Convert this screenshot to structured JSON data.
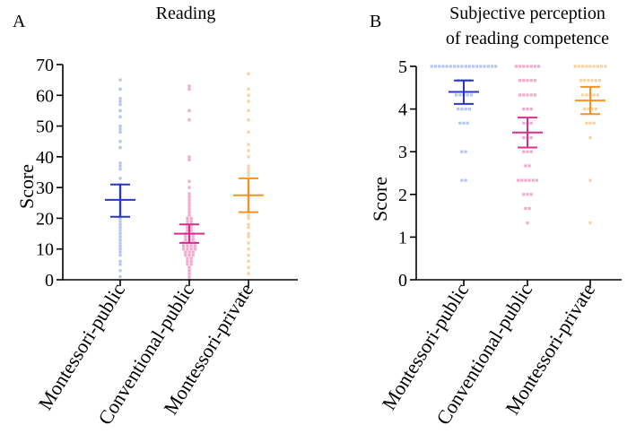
{
  "chart_data": [
    {
      "type": "scatter",
      "panel_letter": "A",
      "title": "Reading",
      "ylabel": "Score",
      "ylim": [
        0,
        70
      ],
      "yticks": [
        0,
        10,
        20,
        30,
        40,
        50,
        60,
        70
      ],
      "categories": [
        "Montessori-public",
        "Conventional-public",
        "Montessori-private"
      ],
      "series": [
        {
          "category": "Montessori-public",
          "color": "#2b35c9",
          "point_color": "#b5c6ee",
          "mean": 26,
          "err_low": 20.5,
          "err_high": 31,
          "values": [
            65,
            62,
            59,
            58,
            57,
            55,
            53,
            50,
            49,
            48,
            45,
            43,
            38,
            37,
            36,
            33,
            31,
            30,
            29,
            28,
            27,
            26,
            25,
            24,
            23,
            22,
            21,
            20,
            19,
            18,
            17,
            16,
            15,
            14,
            13,
            12,
            11,
            10,
            9,
            8,
            6,
            5,
            3,
            1
          ]
        },
        {
          "category": "Conventional-public",
          "color": "#d4318f",
          "point_color": "#f2a8cf",
          "mean": 15,
          "err_low": 12,
          "err_high": 18,
          "values": [
            63,
            62,
            55,
            52,
            40,
            39,
            32,
            30,
            28,
            27,
            26,
            25,
            24,
            23,
            22,
            21,
            20,
            20,
            19,
            19,
            18,
            18,
            17,
            17,
            16,
            16,
            15,
            15,
            15,
            14,
            14,
            14,
            13,
            13,
            13,
            12,
            12,
            12,
            12,
            11,
            11,
            11,
            11,
            10,
            10,
            10,
            10,
            9,
            9,
            9,
            8,
            8,
            8,
            7,
            7,
            6,
            6,
            5,
            5,
            4,
            3,
            2,
            1,
            0
          ]
        },
        {
          "category": "Montessori-private",
          "color": "#f29426",
          "point_color": "#f8d2a5",
          "mean": 27.5,
          "err_low": 22,
          "err_high": 33,
          "values": [
            67,
            62,
            60,
            58,
            55,
            52,
            48,
            44,
            42,
            40,
            37,
            36,
            35,
            34,
            32,
            31,
            30,
            29,
            28,
            27,
            26,
            25,
            24,
            23,
            22,
            21,
            20,
            18,
            17,
            15,
            14,
            12,
            10,
            8,
            6,
            4,
            2
          ]
        }
      ]
    },
    {
      "type": "scatter",
      "panel_letter": "B",
      "title": "Subjective perception of reading competence",
      "title_lines": [
        "Subjective perception",
        "of reading competence"
      ],
      "ylabel": "Score",
      "ylim": [
        0,
        5
      ],
      "yticks": [
        0,
        1,
        2,
        3,
        4,
        5
      ],
      "categories": [
        "Montessori-public",
        "Conventional-public",
        "Montessori-private"
      ],
      "series": [
        {
          "category": "Montessori-public",
          "color": "#2b35c9",
          "point_color": "#b5c6ee",
          "mean": 4.4,
          "err_low": 4.12,
          "err_high": 4.67,
          "values": [
            5,
            5,
            5,
            5,
            5,
            5,
            5,
            5,
            5,
            5,
            5,
            5,
            5,
            5,
            5,
            5,
            5,
            5,
            4.67,
            4.67,
            4.67,
            4.67,
            4.33,
            4.33,
            4.33,
            4.33,
            4.33,
            4,
            4,
            4,
            4,
            3.67,
            3.67,
            3.67,
            3,
            3,
            2.33,
            2.33
          ]
        },
        {
          "category": "Conventional-public",
          "color": "#d4318f",
          "point_color": "#f2a8cf",
          "mean": 3.45,
          "err_low": 3.1,
          "err_high": 3.8,
          "values": [
            5,
            5,
            5,
            5,
            5,
            5,
            5,
            4.67,
            4.67,
            4.67,
            4.67,
            4.67,
            4.33,
            4.33,
            4.33,
            4.33,
            4.33,
            4,
            4,
            4,
            3.67,
            3.67,
            3.67,
            3.33,
            3.33,
            3.33,
            3,
            3,
            3,
            2.67,
            2.67,
            2.33,
            2.33,
            2.33,
            2.33,
            2.33,
            2.33,
            2,
            2,
            2,
            1.67,
            1.67,
            1.33
          ]
        },
        {
          "category": "Montessori-private",
          "color": "#f29426",
          "point_color": "#f8d2a5",
          "mean": 4.2,
          "err_low": 3.88,
          "err_high": 4.52,
          "values": [
            5,
            5,
            5,
            5,
            5,
            5,
            5,
            5,
            5,
            4.67,
            4.67,
            4.67,
            4.67,
            4.67,
            4.67,
            4.33,
            4.33,
            4.33,
            4.33,
            4.33,
            4,
            4,
            4,
            4,
            3.67,
            3.67,
            3.67,
            3.33,
            2.33,
            1.33
          ]
        }
      ]
    }
  ]
}
